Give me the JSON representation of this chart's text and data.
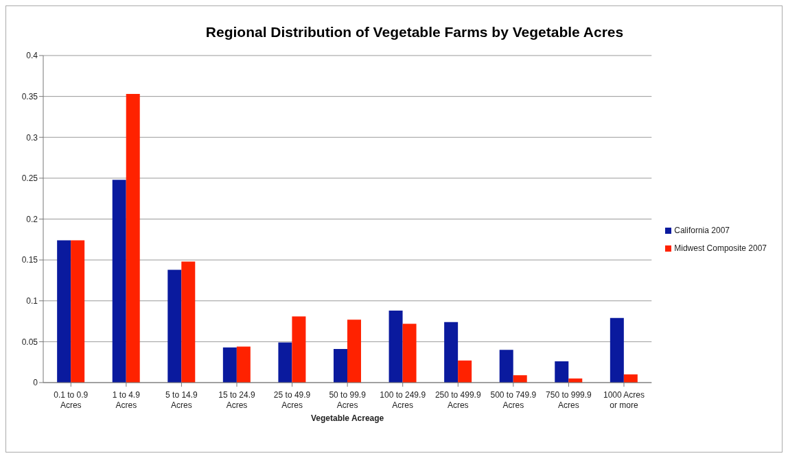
{
  "chart_data": {
    "type": "bar",
    "title": "Regional Distribution of Vegetable Farms by Vegetable Acres",
    "xlabel": "Vegetable Acreage",
    "categories": [
      "0.1 to 0.9 Acres",
      "1 to 4.9 Acres",
      "5 to 14.9 Acres",
      "15 to 24.9 Acres",
      "25 to 49.9 Acres",
      "50 to 99.9 Acres",
      "100 to 249.9 Acres",
      "250 to 499.9 Acres",
      "500 to 749.9 Acres",
      "750 to 999.9 Acres",
      "1000 Acres or more"
    ],
    "series": [
      {
        "name": "California 2007",
        "color": "#0a1a9e",
        "values": [
          0.174,
          0.248,
          0.138,
          0.043,
          0.049,
          0.041,
          0.088,
          0.074,
          0.04,
          0.026,
          0.079
        ]
      },
      {
        "name": "Midwest Composite 2007",
        "color": "#ff2200",
        "values": [
          0.174,
          0.353,
          0.148,
          0.044,
          0.081,
          0.077,
          0.072,
          0.027,
          0.009,
          0.005,
          0.01
        ]
      }
    ],
    "ylim": [
      0,
      0.4
    ],
    "yticks": [
      0,
      0.05,
      0.1,
      0.15,
      0.2,
      0.25,
      0.3,
      0.35,
      0.4
    ],
    "grid": "y",
    "legend": "right"
  }
}
